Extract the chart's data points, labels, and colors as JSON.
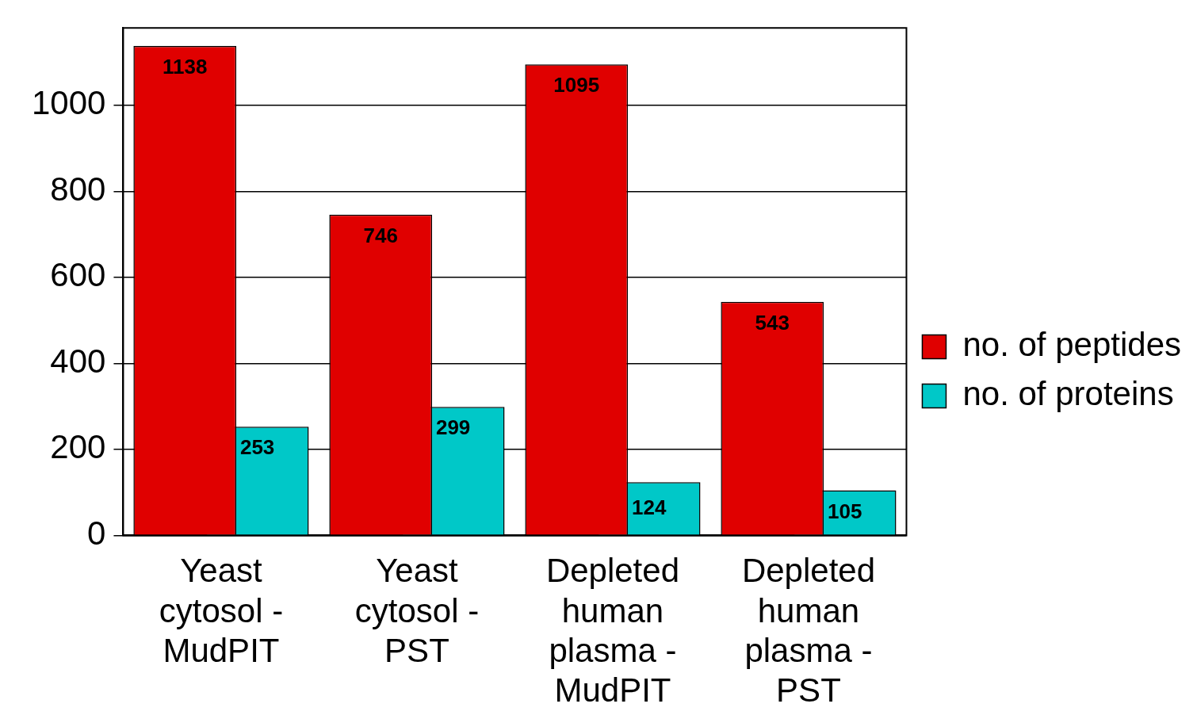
{
  "chart_data": {
    "type": "bar",
    "categories": [
      "Yeast cytosol - MudPIT",
      "Yeast cytosol - PST",
      "Depleted human plasma - MudPIT",
      "Depleted human plasma - PST"
    ],
    "series": [
      {
        "name": "no. of peptides",
        "color": "#e00000",
        "values": [
          1138,
          746,
          1095,
          543
        ]
      },
      {
        "name": "no. of proteins",
        "color": "#00c8c8",
        "values": [
          253,
          299,
          124,
          105
        ]
      }
    ],
    "ylim": [
      0,
      1180
    ],
    "yticks": [
      0,
      200,
      400,
      600,
      800,
      1000
    ],
    "grid": "y",
    "legend": "right",
    "data_labels": true
  }
}
